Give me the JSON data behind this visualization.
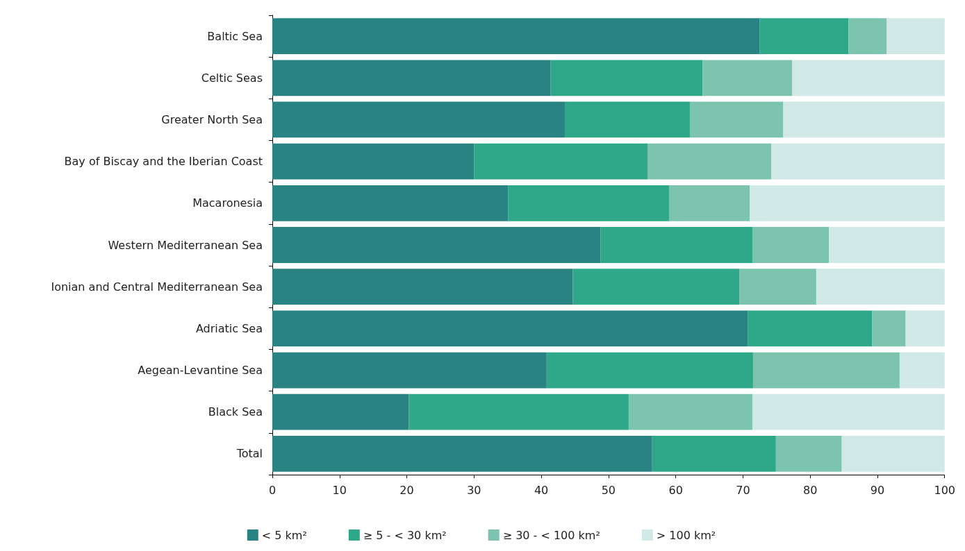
{
  "chart_data": {
    "type": "bar",
    "orientation": "horizontal",
    "stacked": true,
    "legend": "bottom",
    "grid": false,
    "categories": [
      "Baltic Sea",
      "Celtic Seas",
      "Greater North Sea",
      "Bay of Biscay and the Iberian Coast",
      "Macaronesia",
      "Western Mediterranean Sea",
      "Ionian and Central Mediterranean Sea",
      "Adriatic Sea",
      "Aegean-Levantine Sea",
      "Black Sea",
      "Total"
    ],
    "xlim": [
      0,
      100
    ],
    "xticks": [
      0,
      10,
      20,
      30,
      40,
      50,
      60,
      70,
      80,
      90,
      100
    ],
    "series": [
      {
        "name": "< 5 km²",
        "color": "#2a8383",
        "values": [
          72.5,
          41.4,
          43.5,
          30.0,
          35.1,
          48.8,
          44.7,
          70.7,
          40.8,
          20.3,
          56.5
        ]
      },
      {
        "name": "≥ 5 - < 30 km²",
        "color": "#2ea889",
        "values": [
          13.2,
          22.6,
          18.6,
          25.8,
          23.9,
          22.6,
          24.8,
          18.5,
          30.7,
          32.7,
          18.4
        ]
      },
      {
        "name": "≥ 30 - < 100 km²",
        "color": "#7cc4ae",
        "values": [
          5.7,
          13.3,
          13.9,
          18.4,
          12.0,
          11.4,
          11.4,
          5.0,
          21.8,
          18.4,
          9.8
        ]
      },
      {
        "name": "> 100 km²",
        "color": "#d0e8e6",
        "values": [
          8.6,
          22.7,
          24.0,
          25.8,
          29.0,
          17.2,
          19.1,
          5.8,
          6.7,
          28.6,
          15.3
        ]
      }
    ]
  }
}
